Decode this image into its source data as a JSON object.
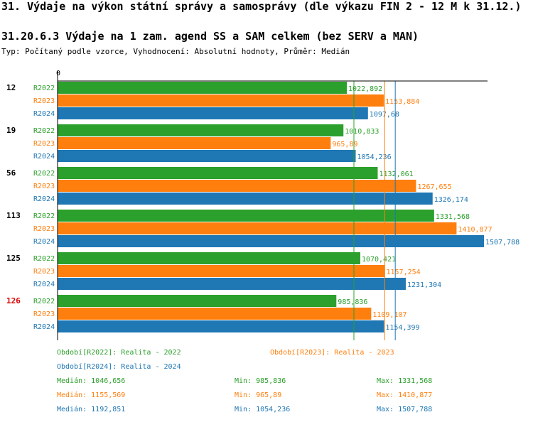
{
  "title": "31. Výdaje na výkon státní správy a samosprávy (dle výkazu FIN 2 - 12 M k 31.12.)",
  "subtitle": "31.20.6.3 Výdaje na 1 zam. agend SS a SAM celkem (bez SERV a MAN)",
  "info": "Typ: Počítaný podle vzorce, Vyhodnocení: Absolutní hodnoty, Průměr: Medián",
  "chart_data": {
    "type": "bar",
    "orientation": "horizontal",
    "title": "31.20.6.3 Výdaje na 1 zam. agend SS a SAM celkem (bez SERV a MAN)",
    "axis_zero_label": "0",
    "xlim": [
      0,
      1507.788
    ],
    "categories": [
      "12",
      "19",
      "56",
      "113",
      "125",
      "126"
    ],
    "highlight_category": "126",
    "series": [
      {
        "name": "R2022",
        "color": "#2ca02c",
        "values": [
          1022.892,
          1010.833,
          1132.061,
          1331.568,
          1070.421,
          985.836
        ],
        "labels": [
          "1022,892",
          "1010,833",
          "1132,061",
          "1331,568",
          "1070,421",
          "985,836"
        ]
      },
      {
        "name": "R2023",
        "color": "#ff7f0e",
        "values": [
          1153.884,
          965.89,
          1267.655,
          1410.877,
          1157.254,
          1109.107
        ],
        "labels": [
          "1153,884",
          "965,89",
          "1267,655",
          "1410,877",
          "1157,254",
          "1109,107"
        ]
      },
      {
        "name": "R2024",
        "color": "#1f77b4",
        "values": [
          1097.68,
          1054.236,
          1326.174,
          1507.788,
          1231.304,
          1154.399
        ],
        "labels": [
          "1097,68",
          "1054,236",
          "1326,174",
          "1507,788",
          "1231,304",
          "1154,399"
        ]
      }
    ],
    "medians": [
      1046.656,
      1155.569,
      1192.851
    ],
    "legend": [
      {
        "text": "Období[R2022]: Realita - 2022",
        "color": "#2ca02c"
      },
      {
        "text": "Období[R2023]: Realita - 2023",
        "color": "#ff7f0e"
      },
      {
        "text": "Období[R2024]: Realita - 2024",
        "color": "#1f77b4"
      }
    ],
    "stats": [
      {
        "median": "Medián: 1046,656",
        "min": "Min: 985,836",
        "max": "Max: 1331,568",
        "color": "#2ca02c"
      },
      {
        "median": "Medián: 1155,569",
        "min": "Min: 965,89",
        "max": "Max: 1410,877",
        "color": "#ff7f0e"
      },
      {
        "median": "Medián: 1192,851",
        "min": "Min: 1054,236",
        "max": "Max: 1507,788",
        "color": "#1f77b4"
      }
    ]
  }
}
